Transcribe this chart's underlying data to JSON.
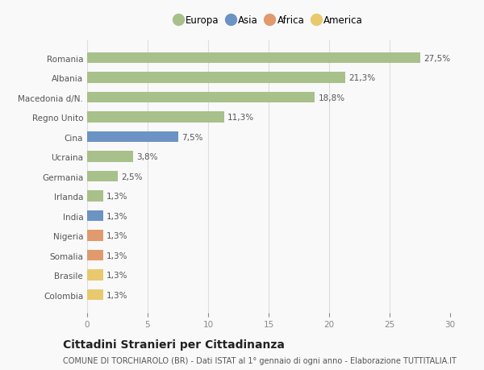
{
  "categories": [
    "Romania",
    "Albania",
    "Macedonia d/N.",
    "Regno Unito",
    "Cina",
    "Ucraina",
    "Germania",
    "Irlanda",
    "India",
    "Nigeria",
    "Somalia",
    "Brasile",
    "Colombia"
  ],
  "values": [
    27.5,
    21.3,
    18.8,
    11.3,
    7.5,
    3.8,
    2.5,
    1.3,
    1.3,
    1.3,
    1.3,
    1.3,
    1.3
  ],
  "labels": [
    "27,5%",
    "21,3%",
    "18,8%",
    "11,3%",
    "7,5%",
    "3,8%",
    "2,5%",
    "1,3%",
    "1,3%",
    "1,3%",
    "1,3%",
    "1,3%",
    "1,3%"
  ],
  "colors": [
    "#a8c08a",
    "#a8c08a",
    "#a8c08a",
    "#a8c08a",
    "#6b93c4",
    "#a8c08a",
    "#a8c08a",
    "#a8c08a",
    "#6b93c4",
    "#e09a6e",
    "#e09a6e",
    "#e8c96e",
    "#e8c96e"
  ],
  "legend": [
    {
      "label": "Europa",
      "color": "#a8c08a"
    },
    {
      "label": "Asia",
      "color": "#6b93c4"
    },
    {
      "label": "Africa",
      "color": "#e09a6e"
    },
    {
      "label": "America",
      "color": "#e8c96e"
    }
  ],
  "xlim": [
    0,
    30
  ],
  "xticks": [
    0,
    5,
    10,
    15,
    20,
    25,
    30
  ],
  "title": "Cittadini Stranieri per Cittadinanza",
  "subtitle": "COMUNE DI TORCHIAROLO (BR) - Dati ISTAT al 1° gennaio di ogni anno - Elaborazione TUTTITALIA.IT",
  "bg_color": "#f9f9f9",
  "grid_color": "#dddddd",
  "bar_height": 0.55,
  "label_fontsize": 7.5,
  "tick_fontsize": 7.5,
  "title_fontsize": 10,
  "subtitle_fontsize": 7
}
